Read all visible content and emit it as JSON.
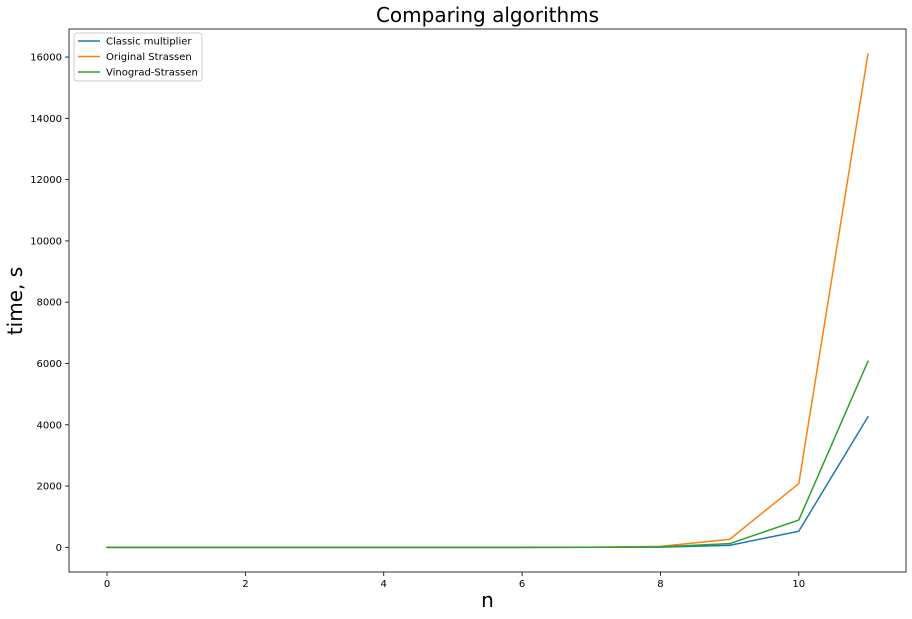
{
  "chart_data": {
    "type": "line",
    "title": "Comparing algorithms",
    "xlabel": "n",
    "ylabel": "time, s",
    "xlim": [
      -0.55,
      11.55
    ],
    "ylim": [
      -805,
      16915
    ],
    "xticks": [
      0,
      2,
      4,
      6,
      8,
      10
    ],
    "yticks": [
      0,
      2000,
      4000,
      6000,
      8000,
      10000,
      12000,
      14000,
      16000
    ],
    "grid": false,
    "legend_position": "top-left",
    "x": [
      0,
      1,
      2,
      3,
      4,
      5,
      6,
      7,
      8,
      9,
      10,
      11
    ],
    "series": [
      {
        "name": "Classic multiplier",
        "color": "#1f77b4",
        "values": [
          0,
          0,
          0,
          0,
          0,
          0,
          0.1,
          1,
          8,
          65,
          525,
          4260
        ]
      },
      {
        "name": "Original Strassen",
        "color": "#ff7f0e",
        "values": [
          0,
          0,
          0,
          0,
          0,
          0,
          0.5,
          4,
          30,
          260,
          2080,
          16100
        ]
      },
      {
        "name": "Vinograd-Strassen",
        "color": "#2ca02c",
        "values": [
          0,
          0,
          0,
          0,
          0,
          0,
          0.2,
          2,
          15,
          120,
          890,
          6070
        ]
      }
    ]
  }
}
